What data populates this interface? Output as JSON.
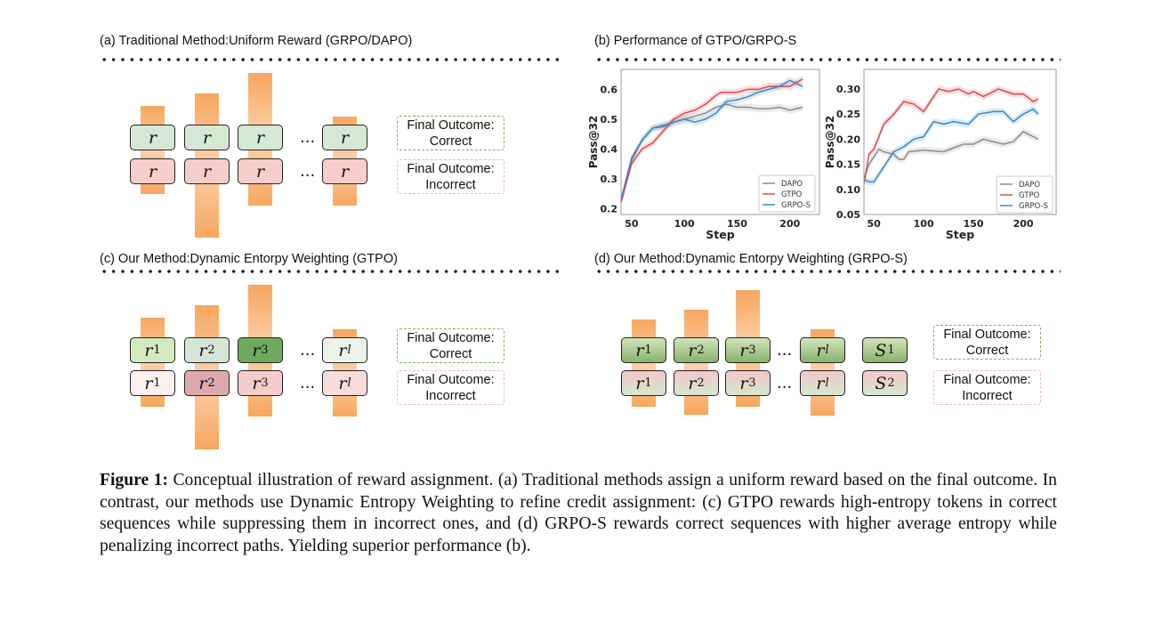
{
  "panels": {
    "a": {
      "title": "(a) Traditional Method:Uniform Reward (GRPO/DAPO)",
      "correct_row": [
        {
          "base": "r",
          "sub": ""
        },
        {
          "base": "r",
          "sub": ""
        },
        {
          "base": "r",
          "sub": ""
        },
        {
          "base": "r",
          "sub": ""
        }
      ],
      "incorrect_row": [
        {
          "base": "r",
          "sub": ""
        },
        {
          "base": "r",
          "sub": ""
        },
        {
          "base": "r",
          "sub": ""
        },
        {
          "base": "r",
          "sub": ""
        }
      ],
      "correct_colors": [
        "#d5e8d4",
        "#d5e8d4",
        "#d5e8d4",
        "#d5e8d4"
      ],
      "incorrect_colors": [
        "#f8cecc",
        "#f8cecc",
        "#f8cecc",
        "#f8cecc"
      ],
      "ellipsis": "...",
      "outcome_correct": [
        "Final Outcome:",
        "Correct"
      ],
      "outcome_incorrect": [
        "Final Outcome:",
        "Incorrect"
      ]
    },
    "b": {
      "title": "(b) Performance of GTPO/GRPO-S"
    },
    "c": {
      "title": "(c) Our Method:Dynamic Entorpy Weighting (GTPO)",
      "correct_row": [
        {
          "base": "r",
          "sub": "1"
        },
        {
          "base": "r",
          "sub": "2"
        },
        {
          "base": "r",
          "sub": "3"
        },
        {
          "base": "r",
          "sub": "l"
        }
      ],
      "incorrect_row": [
        {
          "base": "r",
          "sub": "1"
        },
        {
          "base": "r",
          "sub": "2"
        },
        {
          "base": "r",
          "sub": "3"
        },
        {
          "base": "r",
          "sub": "l"
        }
      ],
      "correct_colors": [
        "#d3eabf",
        "#d6e4d6",
        "#6fa95e",
        "#eef3ea"
      ],
      "incorrect_colors": [
        "#fcf0f0",
        "#dcaaab",
        "#f5cccc",
        "#f7dcdc"
      ],
      "ellipsis": "...",
      "outcome_correct": [
        "Final Outcome:",
        "Correct"
      ],
      "outcome_incorrect": [
        "Final Outcome:",
        "Incorrect"
      ]
    },
    "d": {
      "title": "(d) Our Method:Dynamic Entorpy Weighting (GRPO-S)",
      "correct_row": [
        {
          "base": "r",
          "sub": "1"
        },
        {
          "base": "r",
          "sub": "2"
        },
        {
          "base": "r",
          "sub": "3"
        },
        {
          "base": "r",
          "sub": "l"
        },
        {
          "base": "S",
          "sub": "1"
        }
      ],
      "incorrect_row": [
        {
          "base": "r",
          "sub": "1"
        },
        {
          "base": "r",
          "sub": "2"
        },
        {
          "base": "r",
          "sub": "3"
        },
        {
          "base": "r",
          "sub": "l"
        },
        {
          "base": "S",
          "sub": "2"
        }
      ],
      "correct_gradient": [
        "#d3e3bb",
        "#86b46d"
      ],
      "incorrect_gradient": [
        "#f3c8c8",
        "#d6e6cf"
      ],
      "ellipsis": "...",
      "outcome_correct": [
        "Final Outcome:",
        "Correct"
      ],
      "outcome_incorrect": [
        "Final Outcome:",
        "Incorrect"
      ]
    }
  },
  "colors": {
    "correct_border": "#82b366",
    "incorrect_border": "#f0b8c0",
    "entropy_bar": "#f7a65e"
  },
  "chart_data": [
    {
      "type": "line",
      "xlabel": "Step",
      "ylabel": "Pass@32",
      "xlim": [
        40,
        228
      ],
      "ylim": [
        0.18,
        0.667
      ],
      "xticks": [
        50,
        100,
        150,
        200
      ],
      "yticks": [
        0.2,
        0.3,
        0.4,
        0.5,
        0.6
      ],
      "grid": false,
      "legend": "bottom-right",
      "shaded_bands": true,
      "series": [
        {
          "name": "DAPO",
          "color": "#8c8c8c",
          "x": [
            40,
            50,
            60,
            70,
            80,
            90,
            100,
            110,
            120,
            130,
            140,
            150,
            160,
            170,
            180,
            190,
            200,
            212
          ],
          "y": [
            0.22,
            0.36,
            0.43,
            0.47,
            0.48,
            0.49,
            0.5,
            0.51,
            0.52,
            0.54,
            0.55,
            0.54,
            0.54,
            0.535,
            0.535,
            0.54,
            0.53,
            0.54
          ]
        },
        {
          "name": "GTPO",
          "color": "#e0474c",
          "x": [
            40,
            50,
            60,
            70,
            80,
            90,
            100,
            110,
            120,
            130,
            135,
            150,
            160,
            170,
            180,
            190,
            200,
            212
          ],
          "y": [
            0.22,
            0.35,
            0.4,
            0.42,
            0.46,
            0.5,
            0.52,
            0.53,
            0.55,
            0.58,
            0.59,
            0.59,
            0.6,
            0.6,
            0.61,
            0.61,
            0.61,
            0.635
          ]
        },
        {
          "name": "GRPO-S",
          "color": "#3a88c9",
          "x": [
            40,
            50,
            60,
            70,
            80,
            90,
            100,
            110,
            120,
            130,
            140,
            150,
            160,
            170,
            180,
            190,
            200,
            212
          ],
          "y": [
            0.23,
            0.37,
            0.43,
            0.47,
            0.475,
            0.49,
            0.5,
            0.49,
            0.5,
            0.52,
            0.56,
            0.565,
            0.575,
            0.59,
            0.6,
            0.61,
            0.63,
            0.61
          ]
        }
      ]
    },
    {
      "type": "line",
      "xlabel": "Step",
      "ylabel": "Pass@32",
      "xlim": [
        40,
        233
      ],
      "ylim": [
        0.05,
        0.339
      ],
      "xticks": [
        50,
        100,
        150,
        200
      ],
      "yticks": [
        0.05,
        0.1,
        0.15,
        0.2,
        0.25,
        0.3
      ],
      "grid": false,
      "legend": "bottom-right",
      "shaded_bands": true,
      "series": [
        {
          "name": "DAPO",
          "color": "#8c8c8c",
          "x": [
            40,
            45,
            55,
            60,
            70,
            75,
            80,
            85,
            100,
            120,
            140,
            150,
            160,
            170,
            180,
            190,
            200,
            215
          ],
          "y": [
            0.12,
            0.15,
            0.18,
            0.175,
            0.17,
            0.16,
            0.16,
            0.175,
            0.178,
            0.175,
            0.19,
            0.19,
            0.2,
            0.195,
            0.19,
            0.195,
            0.215,
            0.2
          ]
        },
        {
          "name": "GTPO",
          "color": "#e0474c",
          "x": [
            40,
            45,
            50,
            60,
            70,
            80,
            90,
            100,
            115,
            125,
            135,
            145,
            150,
            160,
            175,
            190,
            200,
            210,
            215
          ],
          "y": [
            0.11,
            0.17,
            0.18,
            0.23,
            0.25,
            0.275,
            0.27,
            0.255,
            0.3,
            0.295,
            0.3,
            0.29,
            0.295,
            0.285,
            0.3,
            0.29,
            0.29,
            0.275,
            0.28
          ]
        },
        {
          "name": "GRPO-S",
          "color": "#3a88c9",
          "x": [
            40,
            45,
            50,
            60,
            70,
            80,
            90,
            100,
            110,
            120,
            130,
            145,
            155,
            170,
            180,
            190,
            200,
            210,
            215
          ],
          "y": [
            0.12,
            0.115,
            0.115,
            0.145,
            0.175,
            0.185,
            0.2,
            0.205,
            0.235,
            0.23,
            0.235,
            0.23,
            0.25,
            0.255,
            0.255,
            0.235,
            0.25,
            0.26,
            0.25
          ]
        }
      ]
    }
  ],
  "caption": {
    "label": "Figure 1:",
    "text": " Conceptual illustration of reward assignment. (a) Traditional methods assign a uniform reward based on the final outcome. In contrast, our methods use Dynamic Entropy Weighting to refine credit assignment: (c) GTPO rewards high-entropy tokens in correct sequences while suppressing them in incorrect ones, and (d) GRPO-S rewards correct sequences with higher average entropy while penalizing incorrect paths.  Yielding superior performance (b)."
  }
}
